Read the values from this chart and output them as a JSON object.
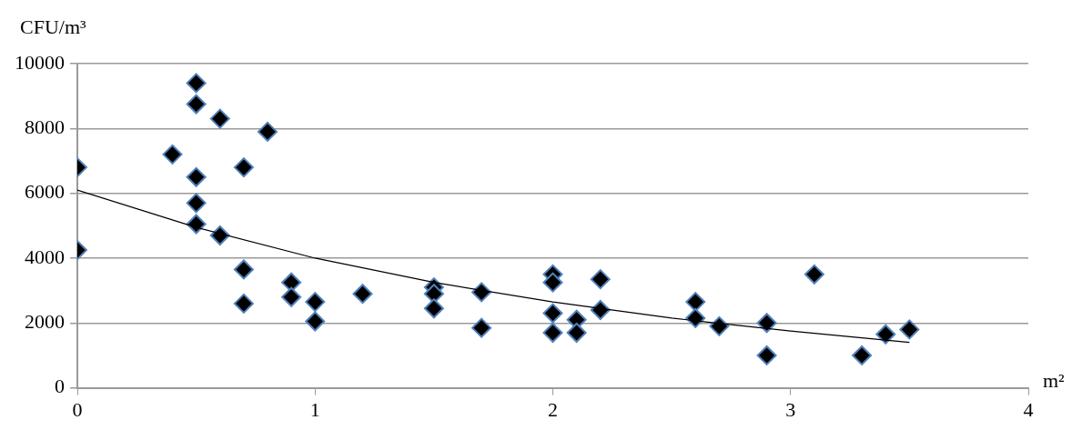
{
  "chart_data": {
    "type": "scatter",
    "xlabel": "m²",
    "ylabel": "CFU/m³",
    "xlim": [
      0,
      4
    ],
    "xticks": [
      0,
      1,
      2,
      3,
      4
    ],
    "ylim": [
      0,
      10000
    ],
    "yticks": [
      0,
      2000,
      4000,
      6000,
      8000,
      10000
    ],
    "grid": "y",
    "marker": "diamond",
    "series": [
      {
        "color": "#000000",
        "x": [
          0,
          0,
          0.4,
          0.5,
          0.5,
          0.5,
          0.5,
          0.5,
          0.6,
          0.6,
          0.7,
          0.7,
          0.7,
          0.8,
          0.9,
          0.9,
          1.0,
          1.0,
          1.2,
          1.5,
          1.5,
          1.5,
          1.7,
          1.7,
          2.0,
          2.0,
          2.0,
          2.0,
          2.1,
          2.1,
          2.2,
          2.2,
          2.6,
          2.6,
          2.7,
          2.9,
          2.9,
          3.1,
          3.3,
          3.4,
          3.5
        ],
        "values": [
          6800,
          4250,
          7200,
          9400,
          8750,
          6500,
          5700,
          5050,
          8300,
          4700,
          6800,
          3650,
          2600,
          7900,
          3250,
          2800,
          2650,
          2050,
          2900,
          3100,
          2900,
          2450,
          2950,
          1850,
          3500,
          3250,
          2300,
          1700,
          2100,
          1700,
          3350,
          2400,
          2650,
          2150,
          1900,
          2000,
          1000,
          3500,
          1000,
          1650,
          1800
        ]
      },
      {
        "type": "line",
        "color": "#000000",
        "marker": "none",
        "x": [
          0,
          0.5,
          1,
          1.5,
          2,
          2.5,
          3,
          3.5
        ],
        "values": [
          6100,
          4950,
          4000,
          3250,
          2650,
          2150,
          1750,
          1400
        ]
      }
    ]
  }
}
